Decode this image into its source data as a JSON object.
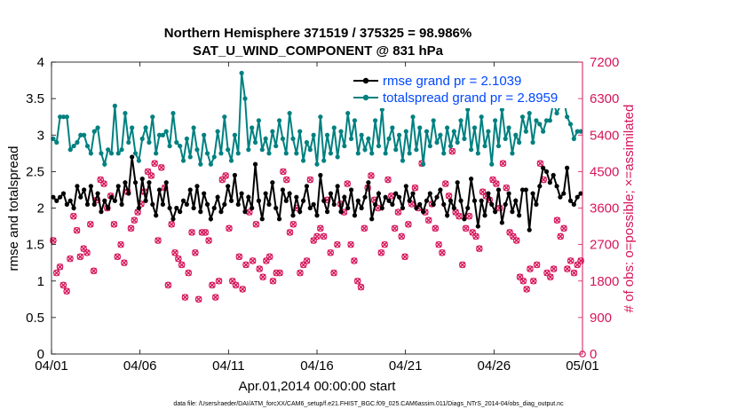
{
  "colors": {
    "rmse": "#000000",
    "spread": "#008080",
    "obs": "#d6155a",
    "legend_text": "#0047ff",
    "axis": "#000000"
  },
  "chart_data": {
    "type": "line",
    "title_line1": "Northern Hemisphere 371519 / 375325 = 98.986%",
    "title_line2": "SAT_U_WIND_COMPONENT @ 831 hPa",
    "xlabel": "Apr.01,2014 00:00:00 start",
    "ylabel_left": "rmse and totalspread",
    "ylabel_right": "# of obs: o=possible; ×=assimilated",
    "footer": "data file: /Users/raeder/DAI/ATM_forcXX/CAM6_setup/f.e21.FHIST_BGC.f09_025.CAM6assim.011/Diags_NTrS_2014-04/obs_diag_output.nc",
    "x_ticks": [
      "04/01",
      "04/06",
      "04/11",
      "04/16",
      "04/21",
      "04/26",
      "05/01"
    ],
    "xlim": [
      0,
      30
    ],
    "ylim_left": [
      0,
      4
    ],
    "yticks_left": [
      "0",
      "0.5",
      "1",
      "1.5",
      "2",
      "2.5",
      "3",
      "3.5",
      "4"
    ],
    "ylim_right": [
      0,
      7200
    ],
    "yticks_right": [
      "0",
      "900",
      "1800",
      "2700",
      "3600",
      "4500",
      "5400",
      "6300",
      "7200"
    ],
    "legend": [
      {
        "label": "rmse grand pr = 2.1039",
        "color": "#000000"
      },
      {
        "label": "totalspread grand pr = 2.8959",
        "color": "#008080"
      }
    ],
    "series": [
      {
        "name": "rmse",
        "axis": "left",
        "values": [
          2.15,
          2.1,
          2.15,
          2.2,
          2.05,
          2.1,
          2.0,
          2.3,
          2.15,
          2.25,
          2.05,
          2.3,
          2.05,
          2.2,
          1.95,
          2.1,
          2.0,
          2.15,
          2.1,
          2.3,
          2.05,
          2.35,
          2.2,
          2.7,
          2.35,
          2.0,
          2.4,
          2.1,
          2.35,
          2.05,
          1.9,
          2.25,
          2.05,
          2.35,
          2.0,
          1.85,
          2.0,
          1.95,
          2.1,
          2.05,
          2.25,
          2.0,
          2.3,
          1.95,
          2.2,
          2.05,
          1.85,
          2.0,
          2.15,
          1.95,
          2.05,
          2.3,
          2.1,
          2.45,
          2.05,
          2.2,
          1.95,
          2.15,
          2.0,
          2.6,
          2.1,
          1.85,
          2.2,
          2.05,
          2.35,
          2.0,
          1.85,
          2.25,
          2.1,
          2.2,
          1.9,
          2.15,
          1.95,
          2.1,
          2.3,
          2.0,
          2.05,
          1.9,
          2.45,
          2.1,
          1.95,
          2.2,
          2.05,
          2.3,
          1.95,
          2.15,
          2.0,
          2.25,
          1.9,
          2.1,
          2.0,
          2.15,
          2.35,
          1.85,
          2.05,
          2.2,
          2.0,
          2.15,
          2.1,
          2.05,
          2.2,
          2.15,
          2.0,
          2.3,
          2.1,
          2.2,
          2.0,
          2.05,
          1.95,
          2.1,
          2.2,
          2.05,
          2.15,
          2.25,
          2.05,
          1.9,
          2.1,
          2.0,
          2.35,
          2.1,
          1.85,
          2.0,
          2.4,
          2.1,
          1.75,
          2.1,
          1.9,
          2.2,
          2.05,
          1.95,
          2.25,
          1.8,
          2.05,
          2.2,
          1.95,
          2.1,
          1.9,
          2.25,
          2.25,
          1.7,
          2.2,
          2.05,
          2.3,
          2.55,
          2.5,
          2.35,
          2.45,
          2.3,
          2.15,
          2.2,
          2.55,
          2.1,
          2.05,
          2.15,
          2.2
        ]
      },
      {
        "name": "totalspread",
        "axis": "left",
        "values": [
          2.95,
          2.9,
          3.25,
          3.25,
          3.25,
          2.8,
          2.85,
          2.9,
          3.0,
          3.0,
          2.85,
          2.75,
          3.05,
          3.1,
          2.75,
          2.6,
          2.8,
          2.75,
          3.4,
          2.75,
          2.8,
          3.3,
          2.9,
          3.1,
          2.75,
          2.65,
          2.95,
          3.1,
          2.9,
          3.25,
          2.75,
          3.0,
          3.0,
          3.05,
          2.85,
          3.3,
          2.9,
          2.85,
          2.65,
          2.95,
          2.7,
          3.1,
          2.8,
          2.6,
          3.0,
          2.75,
          2.6,
          2.7,
          3.05,
          2.75,
          3.25,
          2.8,
          2.65,
          3.0,
          2.75,
          3.85,
          3.5,
          2.8,
          3.1,
          2.9,
          3.2,
          2.8,
          2.95,
          2.75,
          3.05,
          2.85,
          3.2,
          2.95,
          2.75,
          3.3,
          2.95,
          2.75,
          3.05,
          2.65,
          2.9,
          2.8,
          3.0,
          2.6,
          3.25,
          2.65,
          3.0,
          2.75,
          3.1,
          2.7,
          3.05,
          2.85,
          3.3,
          2.95,
          3.2,
          2.75,
          3.0,
          2.8,
          2.95,
          2.75,
          3.2,
          2.85,
          3.35,
          2.75,
          2.95,
          3.1,
          2.8,
          3.0,
          2.65,
          3.05,
          2.75,
          3.25,
          2.8,
          3.1,
          2.6,
          3.05,
          2.85,
          3.2,
          2.9,
          3.0,
          2.75,
          3.1,
          2.85,
          3.05,
          2.9,
          3.2,
          2.95,
          3.35,
          2.8,
          3.1,
          2.75,
          3.25,
          2.85,
          3.05,
          2.6,
          3.2,
          2.85,
          3.35,
          2.95,
          3.1,
          2.75,
          3.0,
          2.9,
          3.25,
          3.05,
          3.3,
          2.9,
          3.2,
          3.15,
          3.05,
          3.2,
          3.2,
          3.45,
          3.3,
          3.4,
          3.5,
          3.25,
          3.15,
          2.95,
          3.05,
          3.05
        ]
      },
      {
        "name": "obs_count",
        "axis": "right",
        "values": [
          2800,
          2000,
          2150,
          1700,
          1550,
          2350,
          3400,
          3050,
          2400,
          2600,
          2500,
          3200,
          2050,
          3800,
          4300,
          4200,
          3600,
          3900,
          3200,
          2400,
          2700,
          2250,
          4000,
          3100,
          3300,
          3500,
          3700,
          4000,
          4500,
          4400,
          4700,
          2800,
          4600,
          4100,
          1700,
          3200,
          2500,
          2350,
          2200,
          1400,
          2000,
          3000,
          2500,
          1350,
          3000,
          3000,
          2800,
          1700,
          1400,
          1800,
          4300,
          4400,
          3100,
          1800,
          1700,
          2400,
          1600,
          2200,
          3500,
          2300,
          3200,
          2100,
          1900,
          2300,
          2400,
          1800,
          2000,
          2000,
          4500,
          4300,
          3000,
          3200,
          3600,
          2000,
          2200,
          2300,
          4300,
          2800,
          2900,
          3100,
          2900,
          3800,
          2500,
          2000,
          2700,
          3700,
          3500,
          4200,
          2700,
          2300,
          1800,
          1650,
          3100,
          4100,
          4400,
          3800,
          3600,
          2500,
          2700,
          4300,
          3900,
          3100,
          3500,
          2900,
          2400,
          3200,
          3700,
          4100,
          3600,
          4700,
          3500,
          3300,
          3700,
          3100,
          2700,
          2500,
          4200,
          3900,
          5000,
          3500,
          3400,
          2200,
          3100,
          3400,
          3000,
          2900,
          2600,
          4000,
          3900,
          3800,
          4300,
          4200,
          3600,
          4700,
          4100,
          3000,
          2900,
          2800,
          1900,
          1800,
          1600,
          2100,
          1800,
          2200,
          4700,
          4300,
          2000,
          1900,
          2100,
          3300,
          2900,
          3100,
          2100,
          2300,
          2000,
          2200,
          2300
        ]
      },
      {
        "name": "obs_possible",
        "axis": "right",
        "values": [
          2800,
          2000,
          2150,
          1700,
          1550,
          2350,
          3400,
          3050,
          2400,
          2600,
          2500,
          3200,
          2050,
          3800,
          4300,
          4200,
          3600,
          3900,
          3200,
          2400,
          2700,
          2250,
          4000,
          3100,
          3300,
          3500,
          3700,
          4000,
          4500,
          4400,
          4700,
          2800,
          4600,
          4100,
          1700,
          3200,
          2500,
          2350,
          2200,
          1400,
          2000,
          3000,
          2500,
          1350,
          3000,
          3000,
          2800,
          1700,
          1400,
          1800,
          4300,
          4400,
          3100,
          1800,
          1700,
          2400,
          1600,
          2200,
          3500,
          2300,
          3200,
          2100,
          1900,
          2300,
          2400,
          1800,
          2000,
          2000,
          4500,
          4300,
          3000,
          3200,
          3600,
          2000,
          2200,
          2300,
          4300,
          2800,
          2900,
          3100,
          2900,
          3800,
          2500,
          2000,
          2700,
          3700,
          3500,
          4200,
          2700,
          2300,
          1800,
          1650,
          3100,
          4100,
          4400,
          3800,
          3600,
          2500,
          2700,
          4300,
          3900,
          3100,
          3500,
          2900,
          2400,
          3200,
          3700,
          4100,
          3600,
          4700,
          3500,
          3300,
          3700,
          3100,
          2700,
          2500,
          4200,
          3900,
          5000,
          3500,
          3400,
          2200,
          3100,
          3400,
          3000,
          2900,
          2600,
          4000,
          3900,
          3800,
          4300,
          4200,
          3600,
          4700,
          4100,
          3000,
          2900,
          2800,
          1900,
          1800,
          1600,
          2100,
          1800,
          2200,
          4700,
          4300,
          2000,
          1900,
          2100,
          3300,
          2900,
          3100,
          2100,
          2300,
          2000,
          2200,
          2300
        ]
      }
    ]
  }
}
